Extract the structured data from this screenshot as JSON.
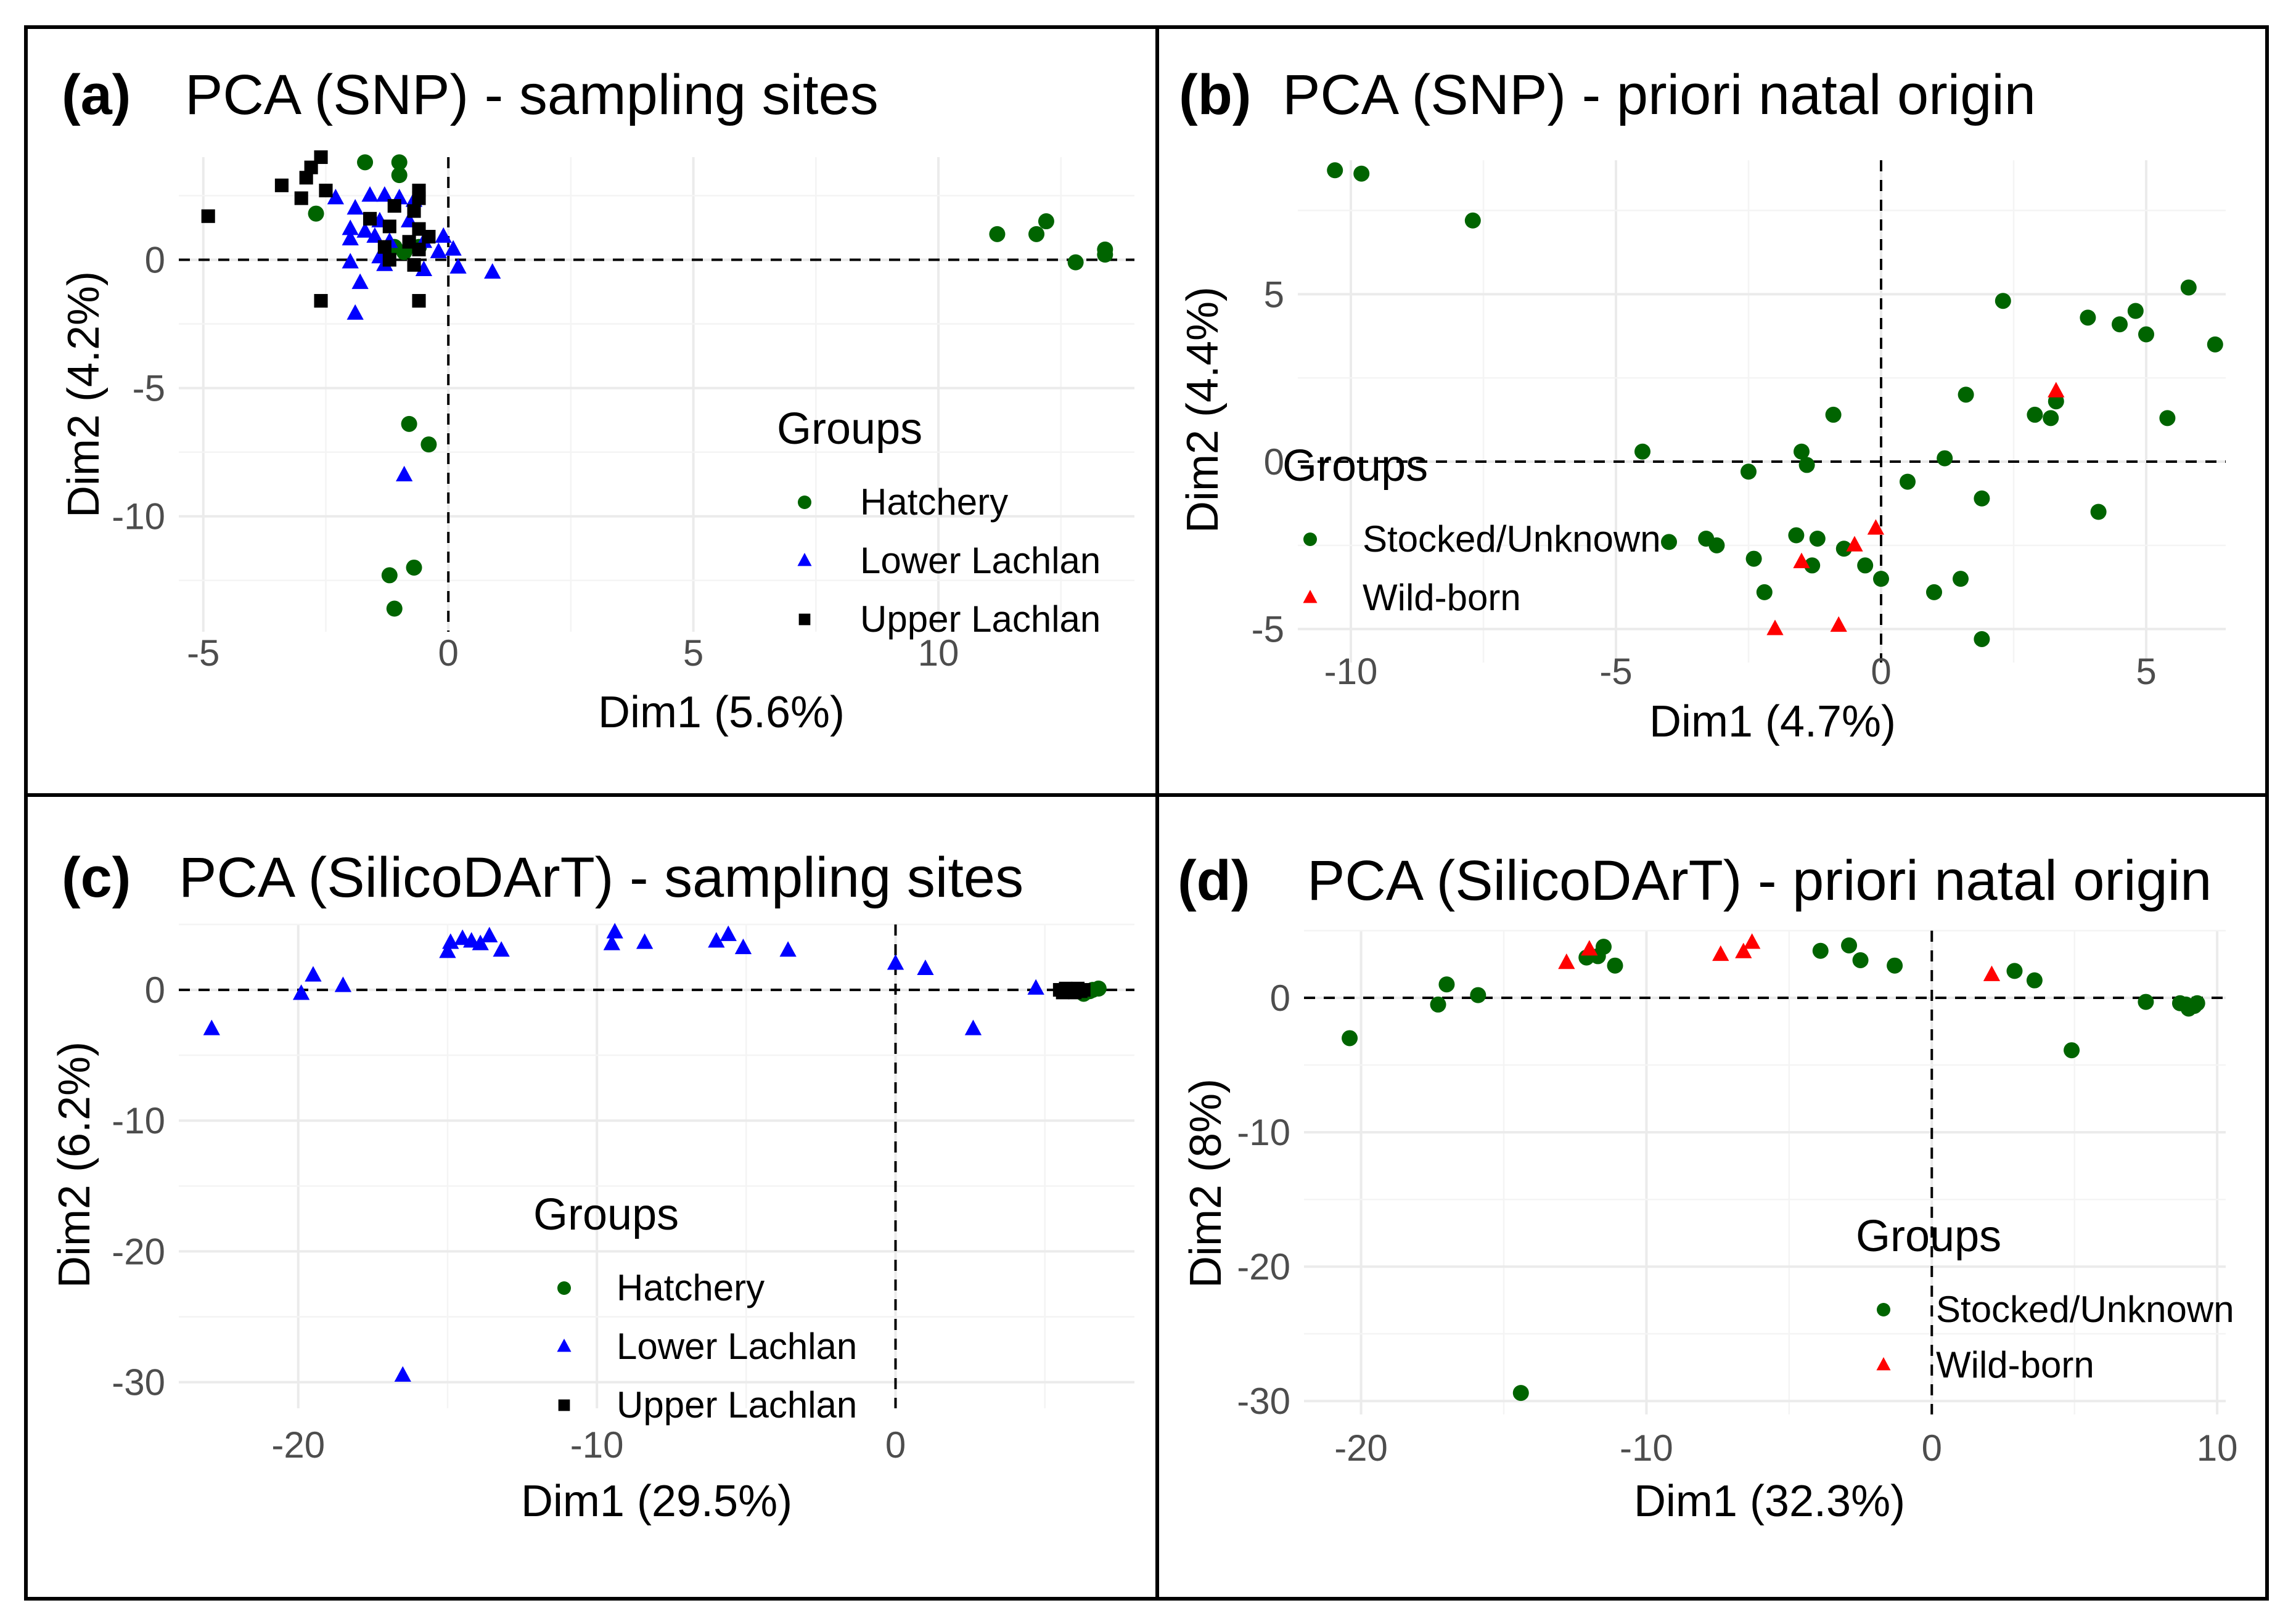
{
  "figure": {
    "border_color": "#000000"
  },
  "colors": {
    "green": "#006400",
    "blue": "#0000ff",
    "black": "#000000",
    "red": "#ff0000"
  },
  "chart_data": [
    {
      "type": "scatter",
      "tag": "(a)",
      "title": "PCA (SNP) - sampling sites",
      "xlabel": "Dim1 (5.6%)",
      "ylabel": "Dim2 (4.2%)",
      "xlim": [
        -5.5,
        14
      ],
      "ylim": [
        -14.5,
        4
      ],
      "xticks": [
        -5,
        0,
        5,
        10
      ],
      "yticks": [
        -10,
        -5,
        0
      ],
      "tick_labels_x": [
        "-5",
        "0",
        "5",
        "10"
      ],
      "tick_labels_y": [
        "-10",
        "-5",
        "0"
      ],
      "legend_title": "Groups",
      "legend_position": "bottom-right",
      "series": [
        {
          "name": "Hatchery",
          "marker": "circle",
          "color": "#006400",
          "points": [
            [
              -1.7,
              3.8
            ],
            [
              -1.0,
              3.8
            ],
            [
              -1.0,
              3.3
            ],
            [
              -2.7,
              1.8
            ],
            [
              -1.1,
              0.5
            ],
            [
              -0.9,
              0.3
            ],
            [
              -0.6,
              0.5
            ],
            [
              11.2,
              1.0
            ],
            [
              12.0,
              1.0
            ],
            [
              12.2,
              1.5
            ],
            [
              12.8,
              -0.1
            ],
            [
              13.4,
              0.2
            ],
            [
              13.4,
              0.4
            ],
            [
              -0.8,
              -6.4
            ],
            [
              -0.4,
              -7.2
            ],
            [
              -1.2,
              -12.3
            ],
            [
              -0.7,
              -12.0
            ],
            [
              -1.1,
              -13.6
            ]
          ]
        },
        {
          "name": "Lower Lachlan",
          "marker": "triangle",
          "color": "#0000ff",
          "points": [
            [
              -2.3,
              2.4
            ],
            [
              -1.9,
              2.0
            ],
            [
              -1.6,
              2.5
            ],
            [
              -1.3,
              2.5
            ],
            [
              -1.0,
              2.4
            ],
            [
              -0.7,
              2.3
            ],
            [
              -0.8,
              1.5
            ],
            [
              -1.4,
              1.5
            ],
            [
              -2.0,
              1.2
            ],
            [
              -1.7,
              1.1
            ],
            [
              -1.5,
              0.9
            ],
            [
              -2.0,
              0.8
            ],
            [
              -1.2,
              0.7
            ],
            [
              -0.5,
              0.7
            ],
            [
              -0.1,
              0.9
            ],
            [
              0.1,
              0.4
            ],
            [
              -0.2,
              0.3
            ],
            [
              -1.4,
              0.1
            ],
            [
              -2.0,
              -0.1
            ],
            [
              -1.3,
              -0.2
            ],
            [
              -0.5,
              -0.4
            ],
            [
              0.2,
              -0.3
            ],
            [
              0.9,
              -0.5
            ],
            [
              -1.8,
              -0.9
            ],
            [
              -1.9,
              -2.1
            ],
            [
              -0.9,
              -8.4
            ]
          ]
        },
        {
          "name": "Upper Lachlan",
          "marker": "square",
          "color": "#000000",
          "points": [
            [
              -2.6,
              4.0
            ],
            [
              -2.8,
              3.6
            ],
            [
              -2.9,
              3.2
            ],
            [
              -3.4,
              2.9
            ],
            [
              -3.0,
              2.4
            ],
            [
              -2.5,
              2.7
            ],
            [
              -0.6,
              2.7
            ],
            [
              -0.6,
              2.4
            ],
            [
              -1.1,
              2.1
            ],
            [
              -0.7,
              1.9
            ],
            [
              -1.6,
              1.6
            ],
            [
              -1.2,
              1.3
            ],
            [
              -0.6,
              1.2
            ],
            [
              -0.4,
              0.9
            ],
            [
              -0.8,
              0.7
            ],
            [
              -1.3,
              0.5
            ],
            [
              -0.6,
              0.4
            ],
            [
              -1.2,
              0.0
            ],
            [
              -0.7,
              -0.2
            ],
            [
              -4.9,
              1.7
            ],
            [
              -2.6,
              -1.6
            ],
            [
              -0.6,
              -1.6
            ]
          ]
        }
      ]
    },
    {
      "type": "scatter",
      "tag": "(b)",
      "title": "PCA (SNP) - priori natal origin",
      "xlabel": "Dim1 (4.7%)",
      "ylabel": "Dim2 (4.4%)",
      "xlim": [
        -11,
        6.5
      ],
      "ylim": [
        -6,
        9
      ],
      "xticks": [
        -10,
        -5,
        0,
        5
      ],
      "yticks": [
        -5,
        0,
        5
      ],
      "tick_labels_x": [
        "-10",
        "-5",
        "0",
        "5"
      ],
      "tick_labels_y": [
        "-5",
        "0",
        "5"
      ],
      "legend_title": "Groups",
      "legend_position": "left",
      "series": [
        {
          "name": "Stocked/Unknown",
          "marker": "circle",
          "color": "#006400",
          "points": [
            [
              -10.3,
              8.7
            ],
            [
              -9.8,
              8.6
            ],
            [
              -7.7,
              7.2
            ],
            [
              -4.5,
              0.3
            ],
            [
              -4.0,
              -2.4
            ],
            [
              -3.3,
              -2.3
            ],
            [
              -3.1,
              -2.5
            ],
            [
              -2.5,
              -0.3
            ],
            [
              -2.4,
              -2.9
            ],
            [
              -2.2,
              -3.9
            ],
            [
              -1.6,
              -2.2
            ],
            [
              -1.5,
              0.3
            ],
            [
              -1.4,
              -0.1
            ],
            [
              -1.3,
              -3.1
            ],
            [
              -1.2,
              -2.3
            ],
            [
              -0.9,
              1.4
            ],
            [
              -0.7,
              -2.6
            ],
            [
              -0.3,
              -3.1
            ],
            [
              0.0,
              -3.5
            ],
            [
              0.5,
              -0.6
            ],
            [
              1.0,
              -3.9
            ],
            [
              1.2,
              0.1
            ],
            [
              1.5,
              -3.5
            ],
            [
              1.6,
              2.0
            ],
            [
              1.9,
              -1.1
            ],
            [
              1.9,
              -5.3
            ],
            [
              2.3,
              4.8
            ],
            [
              2.9,
              1.4
            ],
            [
              3.2,
              1.3
            ],
            [
              3.3,
              1.8
            ],
            [
              3.9,
              4.3
            ],
            [
              4.1,
              -1.5
            ],
            [
              4.5,
              4.1
            ],
            [
              4.8,
              4.5
            ],
            [
              5.0,
              3.8
            ],
            [
              5.4,
              1.3
            ],
            [
              5.8,
              5.2
            ],
            [
              6.3,
              3.5
            ]
          ]
        },
        {
          "name": "Wild-born",
          "marker": "triangle",
          "color": "#ff0000",
          "points": [
            [
              -2.0,
              -5.0
            ],
            [
              -1.5,
              -3.0
            ],
            [
              -0.8,
              -4.9
            ],
            [
              -0.5,
              -2.5
            ],
            [
              -0.1,
              -2.0
            ],
            [
              3.3,
              2.1
            ]
          ]
        }
      ]
    },
    {
      "type": "scatter",
      "tag": "(c)",
      "title": "PCA (SilicoDArT) - sampling sites",
      "xlabel": "Dim1 (29.5%)",
      "ylabel": "Dim2 (6.2%)",
      "xlim": [
        -24,
        8
      ],
      "ylim": [
        -32,
        5
      ],
      "xticks": [
        -20,
        -10,
        0
      ],
      "yticks": [
        -30,
        -20,
        -10,
        0
      ],
      "tick_labels_x": [
        "-20",
        "-10",
        "0"
      ],
      "tick_labels_y": [
        "-30",
        "-20",
        "-10",
        "0"
      ],
      "legend_title": "Groups",
      "legend_position": "bottom-center",
      "series": [
        {
          "name": "Hatchery",
          "marker": "circle",
          "color": "#006400",
          "points": [
            [
              6.1,
              0.0
            ],
            [
              6.3,
              -0.3
            ],
            [
              6.6,
              0.0
            ],
            [
              6.8,
              0.1
            ],
            [
              6.5,
              -0.1
            ]
          ]
        },
        {
          "name": "Lower Lachlan",
          "marker": "triangle",
          "color": "#0000ff",
          "points": [
            [
              -22.9,
              -3.0
            ],
            [
              -19.9,
              -0.3
            ],
            [
              -19.5,
              1.1
            ],
            [
              -18.5,
              0.3
            ],
            [
              -15.0,
              2.9
            ],
            [
              -14.9,
              3.6
            ],
            [
              -14.5,
              3.9
            ],
            [
              -14.2,
              3.7
            ],
            [
              -13.9,
              3.5
            ],
            [
              -13.6,
              4.1
            ],
            [
              -13.2,
              3.0
            ],
            [
              -9.5,
              3.5
            ],
            [
              -9.4,
              4.4
            ],
            [
              -8.4,
              3.6
            ],
            [
              -6.0,
              3.7
            ],
            [
              -5.6,
              4.2
            ],
            [
              -5.1,
              3.2
            ],
            [
              -3.6,
              3.0
            ],
            [
              0.0,
              2.0
            ],
            [
              1.0,
              1.6
            ],
            [
              2.6,
              -3.0
            ],
            [
              4.7,
              0.1
            ],
            [
              -16.5,
              -29.5
            ]
          ]
        },
        {
          "name": "Upper Lachlan",
          "marker": "square",
          "color": "#000000",
          "points": [
            [
              5.5,
              0.0
            ],
            [
              5.6,
              -0.2
            ],
            [
              5.8,
              -0.1
            ],
            [
              5.9,
              0.0
            ],
            [
              6.0,
              -0.2
            ],
            [
              6.1,
              0.1
            ],
            [
              6.2,
              -0.1
            ],
            [
              5.7,
              0.1
            ],
            [
              6.3,
              0.0
            ]
          ]
        }
      ]
    },
    {
      "type": "scatter",
      "tag": "(d)",
      "title": "PCA (SilicoDArT) - priori natal origin",
      "xlabel": "Dim1 (32.3%)",
      "ylabel": "Dim2 (8%)",
      "xlim": [
        -22,
        10.3
      ],
      "ylim": [
        -31,
        5
      ],
      "xticks": [
        -20,
        -10,
        0,
        10
      ],
      "yticks": [
        -30,
        -20,
        -10,
        0
      ],
      "tick_labels_x": [
        "-20",
        "-10",
        "0",
        "10"
      ],
      "tick_labels_y": [
        "-30",
        "-20",
        "-10",
        "0"
      ],
      "legend_title": "Groups",
      "legend_position": "bottom-right",
      "series": [
        {
          "name": "Stocked/Unknown",
          "marker": "circle",
          "color": "#006400",
          "points": [
            [
              -20.4,
              -3.0
            ],
            [
              -17.3,
              -0.5
            ],
            [
              -17.0,
              1.0
            ],
            [
              -15.9,
              0.2
            ],
            [
              -14.4,
              -29.4
            ],
            [
              -12.1,
              3.0
            ],
            [
              -11.7,
              3.1
            ],
            [
              -11.5,
              3.8
            ],
            [
              -11.1,
              2.4
            ],
            [
              -3.9,
              3.5
            ],
            [
              -2.9,
              3.9
            ],
            [
              -2.5,
              2.8
            ],
            [
              -1.3,
              2.4
            ],
            [
              2.9,
              2.0
            ],
            [
              3.6,
              1.3
            ],
            [
              4.9,
              -3.9
            ],
            [
              7.5,
              -0.3
            ],
            [
              8.7,
              -0.4
            ],
            [
              8.9,
              -0.5
            ],
            [
              9.0,
              -0.8
            ],
            [
              9.2,
              -0.6
            ],
            [
              9.3,
              -0.4
            ]
          ]
        },
        {
          "name": "Wild-born",
          "marker": "triangle",
          "color": "#ff0000",
          "points": [
            [
              -12.8,
              2.6
            ],
            [
              -12.0,
              3.6
            ],
            [
              -7.4,
              3.2
            ],
            [
              -6.6,
              3.4
            ],
            [
              -6.3,
              4.1
            ],
            [
              2.1,
              1.7
            ]
          ]
        }
      ]
    }
  ]
}
